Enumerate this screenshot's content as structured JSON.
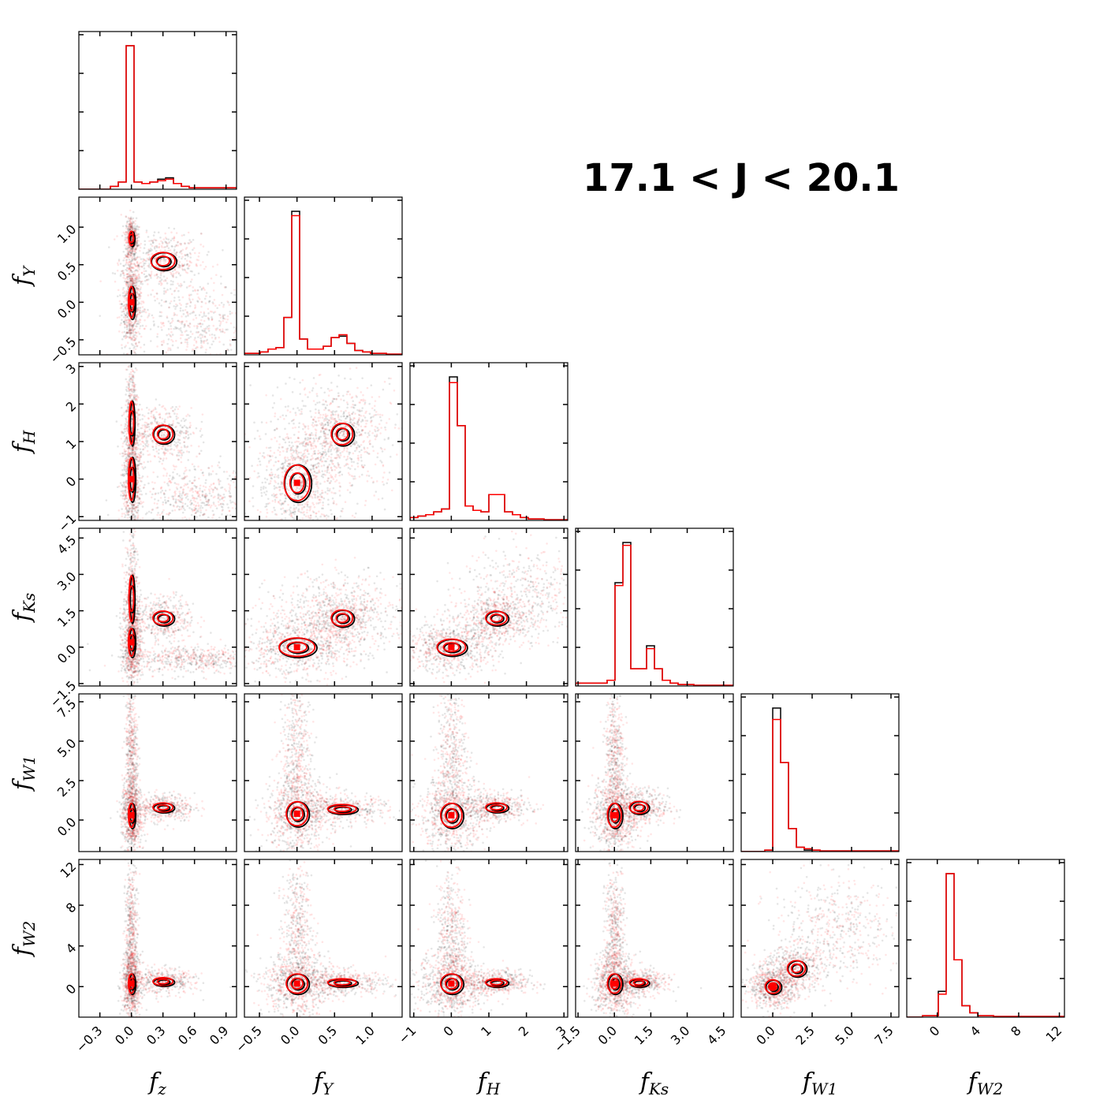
{
  "title": "17.1 < J < 20.1",
  "colors": {
    "black_series": "#000000",
    "red_series": "#ff0000",
    "background": "#ffffff"
  },
  "chart_data": {
    "type": "corner",
    "title": "17.1 < J < 20.1",
    "series": [
      {
        "name": "",
        "color": "#000000"
      },
      {
        "name": "",
        "color": "#ff0000"
      }
    ],
    "variables": [
      {
        "key": "fz",
        "label_main": "f",
        "label_sub": "z",
        "range": [
          -0.5,
          1.0
        ],
        "ticks": [
          "−0.3",
          "0.0",
          "0.3",
          "0.6",
          "0.9"
        ],
        "tick_values": [
          -0.3,
          0.0,
          0.3,
          0.6,
          0.9
        ]
      },
      {
        "key": "fY",
        "label_main": "f",
        "label_sub": "Y",
        "range": [
          -0.7,
          1.4
        ],
        "ticks": [
          "−0.5",
          "0.0",
          "0.5",
          "1.0"
        ],
        "tick_values": [
          -0.5,
          0.0,
          0.5,
          1.0
        ]
      },
      {
        "key": "fH",
        "label_main": "f",
        "label_sub": "H",
        "range": [
          -1.1,
          3.1
        ],
        "ticks": [
          "−1",
          "0",
          "1",
          "2",
          "3"
        ],
        "tick_values": [
          -1,
          0,
          1,
          2,
          3
        ]
      },
      {
        "key": "fKs",
        "label_main": "f",
        "label_sub": "Ks",
        "range": [
          -1.6,
          4.9
        ],
        "ticks": [
          "−1.5",
          "0.0",
          "1.5",
          "3.0",
          "4.5"
        ],
        "tick_values": [
          -1.5,
          0.0,
          1.5,
          3.0,
          4.5
        ]
      },
      {
        "key": "fW1",
        "label_main": "f",
        "label_sub": "W1",
        "range": [
          -2.0,
          8.0
        ],
        "ticks": [
          "0.0",
          "2.5",
          "5.0",
          "7.5"
        ],
        "tick_values": [
          0.0,
          2.5,
          5.0,
          7.5
        ]
      },
      {
        "key": "fW2",
        "label_main": "f",
        "label_sub": "W2",
        "range": [
          -3.0,
          12.5
        ],
        "ticks": [
          "0",
          "4",
          "8",
          "12"
        ],
        "tick_values": [
          0,
          4,
          8,
          12
        ]
      }
    ],
    "histograms": [
      {
        "var": "fz",
        "bins": [
          -0.5,
          1.0,
          20
        ],
        "black": [
          0,
          0,
          0,
          0,
          2,
          5,
          100,
          5,
          4,
          5,
          7,
          8,
          4,
          2,
          1,
          1,
          1,
          1,
          1,
          1
        ],
        "red": [
          0,
          0,
          0,
          0,
          2,
          5,
          100,
          5,
          4,
          5,
          6,
          7,
          4,
          2,
          1,
          1,
          1,
          1,
          1,
          1
        ]
      },
      {
        "var": "fY",
        "bins": [
          -0.7,
          1.4,
          20
        ],
        "black": [
          1,
          1,
          2,
          4,
          5,
          26,
          100,
          11,
          4,
          4,
          6,
          12,
          13,
          8,
          3,
          2,
          1,
          1,
          0.5,
          0.5
        ],
        "red": [
          1,
          1,
          2,
          4,
          5,
          26,
          97,
          11,
          4,
          4,
          6,
          12,
          14,
          8,
          3,
          2,
          1,
          1,
          0.5,
          0.5
        ]
      },
      {
        "var": "fH",
        "bins": [
          -1.1,
          3.1,
          20
        ],
        "black": [
          2,
          3,
          4,
          6,
          8,
          100,
          66,
          10,
          7,
          6,
          18,
          18,
          6,
          4,
          2,
          1,
          1,
          0.5,
          0.5,
          0.5
        ],
        "red": [
          2,
          3,
          4,
          6,
          8,
          96,
          66,
          10,
          7,
          6,
          18,
          18,
          6,
          4,
          2,
          1,
          1,
          0.5,
          0.5,
          0.5
        ]
      },
      {
        "var": "fKs",
        "bins": [
          -1.6,
          4.9,
          20
        ],
        "black": [
          2,
          2,
          2,
          2,
          4,
          72,
          100,
          12,
          12,
          28,
          12,
          4,
          2,
          1,
          1,
          0.5,
          0.5,
          0.5,
          0.5,
          0.5
        ],
        "red": [
          2,
          2,
          2,
          2,
          4,
          70,
          98,
          12,
          12,
          26,
          12,
          4,
          2,
          1,
          1,
          0.5,
          0.5,
          0.5,
          0.5,
          0.5
        ]
      },
      {
        "var": "fW1",
        "bins": [
          -2.0,
          8.0,
          20
        ],
        "black": [
          0,
          0,
          0,
          1,
          100,
          62,
          16,
          3,
          1,
          1,
          0.5,
          0.5,
          0.5,
          0.5,
          0.5,
          0.5,
          0.5,
          0.5,
          0.5,
          0.5
        ],
        "red": [
          0,
          0,
          0,
          1,
          92,
          62,
          16,
          3,
          2,
          1,
          0.5,
          0.5,
          0.5,
          0.5,
          0.5,
          0.5,
          0.5,
          0.5,
          0.5,
          0.5
        ]
      },
      {
        "var": "fW2",
        "bins": [
          -3.0,
          12.5,
          20
        ],
        "black": [
          0,
          0,
          1,
          1,
          18,
          100,
          40,
          8,
          3,
          1,
          1,
          0.5,
          0.5,
          0.5,
          0.5,
          0.5,
          0.5,
          0.5,
          0.5,
          0.5
        ],
        "red": [
          0,
          0,
          1,
          1,
          16,
          100,
          40,
          8,
          3,
          1,
          1,
          0.5,
          0.5,
          0.5,
          0.5,
          0.5,
          0.5,
          0.5,
          0.5,
          0.5
        ]
      }
    ],
    "pairs": [
      {
        "x": "fz",
        "y": "fY",
        "clusters": [
          [
            0.0,
            0.0,
            0.03,
            0.22
          ],
          [
            0.3,
            0.55,
            0.12,
            0.12
          ],
          [
            0.0,
            0.85,
            0.02,
            0.1
          ]
        ],
        "diffuse": [
          [
            0.6,
            -0.3,
            0.3,
            0.3
          ]
        ]
      },
      {
        "x": "fz",
        "y": "fH",
        "clusters": [
          [
            0.0,
            0.0,
            0.03,
            0.6
          ],
          [
            0.3,
            1.2,
            0.1,
            0.25
          ],
          [
            0.0,
            1.5,
            0.02,
            0.6
          ]
        ],
        "diffuse": [
          [
            0.6,
            -0.5,
            0.3,
            0.4
          ]
        ]
      },
      {
        "x": "fY",
        "y": "fH",
        "clusters": [
          [
            0.0,
            -0.1,
            0.18,
            0.5
          ],
          [
            0.6,
            1.2,
            0.15,
            0.3
          ]
        ],
        "diffuse": [
          [
            0.5,
            1.0,
            0.5,
            1.0
          ]
        ]
      },
      {
        "x": "fz",
        "y": "fKs",
        "clusters": [
          [
            0.0,
            0.2,
            0.03,
            0.6
          ],
          [
            0.3,
            1.2,
            0.1,
            0.3
          ],
          [
            0.0,
            2.0,
            0.02,
            1.0
          ]
        ],
        "diffuse": [
          [
            0.6,
            -0.5,
            0.3,
            0.3
          ]
        ]
      },
      {
        "x": "fY",
        "y": "fKs",
        "clusters": [
          [
            0.0,
            0.0,
            0.25,
            0.4
          ],
          [
            0.6,
            1.2,
            0.15,
            0.35
          ]
        ],
        "diffuse": [
          [
            0.6,
            1.5,
            0.5,
            0.8
          ]
        ]
      },
      {
        "x": "fH",
        "y": "fKs",
        "clusters": [
          [
            0.0,
            0.0,
            0.4,
            0.35
          ],
          [
            1.2,
            1.2,
            0.3,
            0.3
          ]
        ],
        "diffuse": [
          [
            1.8,
            2.2,
            0.8,
            1.0
          ]
        ]
      },
      {
        "x": "fz",
        "y": "fW1",
        "clusters": [
          [
            0.0,
            0.3,
            0.03,
            0.8
          ],
          [
            0.3,
            0.8,
            0.1,
            0.3
          ]
        ],
        "diffuse": [
          [
            0.0,
            4.0,
            0.03,
            2.5
          ]
        ]
      },
      {
        "x": "fY",
        "y": "fW1",
        "clusters": [
          [
            0.0,
            0.4,
            0.15,
            0.8
          ],
          [
            0.6,
            0.7,
            0.2,
            0.3
          ]
        ],
        "diffuse": [
          [
            0.0,
            4.0,
            0.1,
            2.5
          ]
        ]
      },
      {
        "x": "fH",
        "y": "fW1",
        "clusters": [
          [
            0.0,
            0.3,
            0.3,
            0.8
          ],
          [
            1.2,
            0.8,
            0.3,
            0.3
          ]
        ],
        "diffuse": [
          [
            0.0,
            4.0,
            0.2,
            2.5
          ]
        ]
      },
      {
        "x": "fKs",
        "y": "fW1",
        "clusters": [
          [
            0.0,
            0.3,
            0.3,
            0.8
          ],
          [
            1.0,
            0.8,
            0.4,
            0.4
          ]
        ],
        "diffuse": [
          [
            0.0,
            4.0,
            0.2,
            2.5
          ]
        ]
      },
      {
        "x": "fz",
        "y": "fW2",
        "clusters": [
          [
            0.0,
            0.3,
            0.03,
            1.0
          ],
          [
            0.3,
            0.5,
            0.1,
            0.4
          ]
        ],
        "diffuse": [
          [
            0.0,
            5.0,
            0.03,
            3.5
          ]
        ]
      },
      {
        "x": "fY",
        "y": "fW2",
        "clusters": [
          [
            0.0,
            0.3,
            0.15,
            1.0
          ],
          [
            0.6,
            0.4,
            0.2,
            0.4
          ]
        ],
        "diffuse": [
          [
            0.0,
            5.0,
            0.1,
            3.5
          ]
        ]
      },
      {
        "x": "fH",
        "y": "fW2",
        "clusters": [
          [
            0.0,
            0.3,
            0.3,
            1.0
          ],
          [
            1.2,
            0.4,
            0.3,
            0.4
          ]
        ],
        "diffuse": [
          [
            0.0,
            5.0,
            0.2,
            3.5
          ]
        ]
      },
      {
        "x": "fKs",
        "y": "fW2",
        "clusters": [
          [
            0.0,
            0.3,
            0.3,
            1.0
          ],
          [
            1.0,
            0.4,
            0.4,
            0.4
          ]
        ],
        "diffuse": [
          [
            0.0,
            5.0,
            0.2,
            3.5
          ]
        ]
      },
      {
        "x": "fW1",
        "y": "fW2",
        "clusters": [
          [
            0.0,
            0.0,
            0.5,
            0.7
          ],
          [
            1.5,
            1.8,
            0.6,
            0.8
          ]
        ],
        "diffuse": [
          [
            4.0,
            5.5,
            2.0,
            2.5
          ]
        ]
      }
    ]
  }
}
